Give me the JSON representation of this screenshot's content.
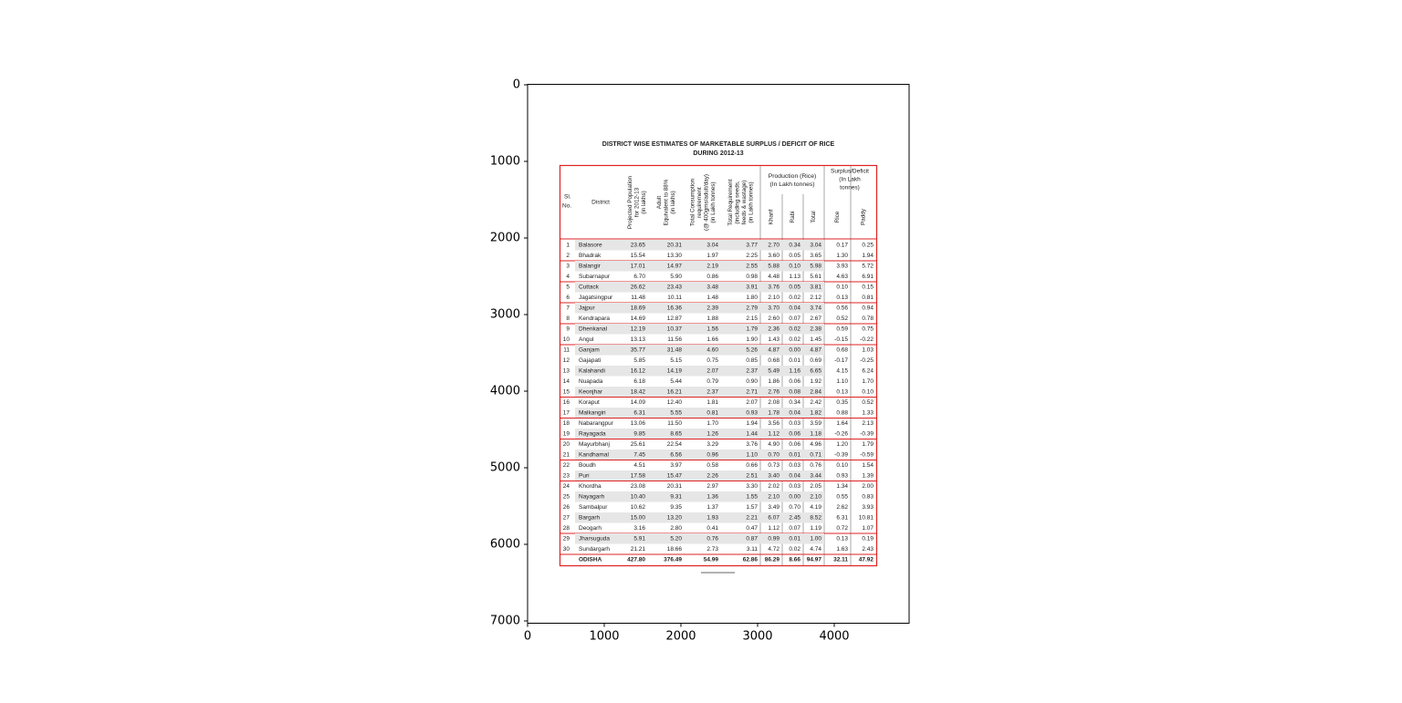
{
  "axes": {
    "xticks": [
      0,
      1000,
      2000,
      3000,
      4000
    ],
    "yticks": [
      0,
      1000,
      2000,
      3000,
      4000,
      5000,
      6000,
      7000
    ]
  },
  "document": {
    "title": [
      "DISTRICT WISE ESTIMATES OF MARKETABLE SURPLUS / DEFICIT OF RICE",
      "DURING 2012-13"
    ],
    "table": {
      "headers": [
        [
          "Sl.",
          "No."
        ],
        [
          "District"
        ],
        [
          "Projected Population",
          "for 2012-13",
          "(in lakhs)"
        ],
        [
          "Adult",
          "Equivalent to 88%",
          "(in lakhs)"
        ],
        [
          "Total Consumption",
          "requirement",
          "(@ 400gms/adult/day)",
          "(in Lakh tonnes)"
        ],
        [
          "Total Requirement",
          "(including seeds,",
          "feeds & wastage)",
          "(in Lakh tonnes)"
        ],
        [
          "Kharif"
        ],
        [
          "Rabi"
        ],
        [
          "Total"
        ],
        [
          "Rice"
        ],
        [
          "Paddy"
        ]
      ],
      "group_headers": [
        [
          "Production (Rice)",
          "(In Lakh tonnes)"
        ],
        [
          "Surplus/Deficit",
          "(In Lakh",
          "tonnes)"
        ]
      ],
      "rows": [
        [
          "1",
          "Balasore",
          "23.65",
          "20.31",
          "3.04",
          "3.77",
          "2.70",
          "0.34",
          "3.04",
          "0.17",
          "0.25"
        ],
        [
          "2",
          "Bhadrak",
          "15.54",
          "13.30",
          "1.97",
          "2.25",
          "3.60",
          "0.05",
          "3.65",
          "1.30",
          "1.94"
        ],
        [
          "3",
          "Balangir",
          "17.01",
          "14.97",
          "2.19",
          "2.55",
          "5.88",
          "0.10",
          "5.98",
          "3.93",
          "5.72"
        ],
        [
          "4",
          "Subarnapur",
          "6.70",
          "5.90",
          "0.86",
          "0.98",
          "4.48",
          "1.13",
          "5.61",
          "4.63",
          "6.91"
        ],
        [
          "5",
          "Cuttack",
          "26.62",
          "23.43",
          "3.48",
          "3.91",
          "3.76",
          "0.05",
          "3.81",
          "0.10",
          "0.15"
        ],
        [
          "6",
          "Jagatsingpur",
          "11.48",
          "10.11",
          "1.48",
          "1.80",
          "2.10",
          "0.02",
          "2.12",
          "0.13",
          "0.81"
        ],
        [
          "7",
          "Jajpur",
          "18.69",
          "16.36",
          "2.39",
          "2.79",
          "3.70",
          "0.04",
          "3.74",
          "0.56",
          "0.94"
        ],
        [
          "8",
          "Kendrapara",
          "14.69",
          "12.87",
          "1.88",
          "2.15",
          "2.60",
          "0.07",
          "2.67",
          "0.52",
          "0.78"
        ],
        [
          "9",
          "Dhenkanal",
          "12.19",
          "10.37",
          "1.56",
          "1.79",
          "2.36",
          "0.02",
          "2.38",
          "0.59",
          "0.75"
        ],
        [
          "10",
          "Angul",
          "13.13",
          "11.56",
          "1.66",
          "1.90",
          "1.43",
          "0.02",
          "1.45",
          "-0.15",
          "-0.22"
        ],
        [
          "11",
          "Ganjam",
          "35.77",
          "31.48",
          "4.60",
          "5.26",
          "4.87",
          "0.00",
          "4.87",
          "0.68",
          "1.03"
        ],
        [
          "12",
          "Gajapati",
          "5.85",
          "5.15",
          "0.75",
          "0.85",
          "0.68",
          "0.01",
          "0.69",
          "-0.17",
          "-0.25"
        ],
        [
          "13",
          "Kalahandi",
          "16.12",
          "14.19",
          "2.07",
          "2.37",
          "5.49",
          "1.16",
          "6.65",
          "4.15",
          "6.24"
        ],
        [
          "14",
          "Nuapada",
          "6.18",
          "5.44",
          "0.79",
          "0.90",
          "1.86",
          "0.06",
          "1.92",
          "1.10",
          "1.70"
        ],
        [
          "15",
          "Keonjhar",
          "18.42",
          "16.21",
          "2.37",
          "2.71",
          "2.76",
          "0.08",
          "2.84",
          "0.13",
          "0.10"
        ],
        [
          "16",
          "Koraput",
          "14.09",
          "12.40",
          "1.81",
          "2.07",
          "2.08",
          "0.34",
          "2.42",
          "0.35",
          "0.52"
        ],
        [
          "17",
          "Malkangiri",
          "6.31",
          "5.55",
          "0.81",
          "0.93",
          "1.78",
          "0.04",
          "1.82",
          "0.88",
          "1.33"
        ],
        [
          "18",
          "Nabarangpur",
          "13.06",
          "11.50",
          "1.70",
          "1.94",
          "3.56",
          "0.03",
          "3.59",
          "1.64",
          "2.13"
        ],
        [
          "19",
          "Rayagada",
          "9.85",
          "8.65",
          "1.26",
          "1.44",
          "1.12",
          "0.06",
          "1.18",
          "-0.26",
          "-0.39"
        ],
        [
          "20",
          "Mayurbhanj",
          "25.61",
          "22.54",
          "3.29",
          "3.76",
          "4.90",
          "0.06",
          "4.96",
          "1.20",
          "1.79"
        ],
        [
          "21",
          "Kandhamal",
          "7.45",
          "6.56",
          "0.96",
          "1.10",
          "0.70",
          "0.01",
          "0.71",
          "-0.39",
          "-0.59"
        ],
        [
          "22",
          "Boudh",
          "4.51",
          "3.97",
          "0.58",
          "0.66",
          "0.73",
          "0.03",
          "0.76",
          "0.10",
          "1.54"
        ],
        [
          "23",
          "Puri",
          "17.58",
          "15.47",
          "2.26",
          "2.51",
          "3.40",
          "0.04",
          "3.44",
          "0.93",
          "1.39"
        ],
        [
          "24",
          "Khordha",
          "23.08",
          "20.31",
          "2.97",
          "3.30",
          "2.02",
          "0.03",
          "2.05",
          "1.34",
          "2.00"
        ],
        [
          "25",
          "Nayagarh",
          "10.40",
          "9.31",
          "1.36",
          "1.55",
          "2.10",
          "0.00",
          "2.10",
          "0.55",
          "0.83"
        ],
        [
          "26",
          "Sambalpur",
          "10.62",
          "9.35",
          "1.37",
          "1.57",
          "3.49",
          "0.70",
          "4.19",
          "2.62",
          "3.93"
        ],
        [
          "27",
          "Bargarh",
          "15.00",
          "13.20",
          "1.93",
          "2.21",
          "6.07",
          "2.45",
          "8.52",
          "6.31",
          "10.81"
        ],
        [
          "28",
          "Deogarh",
          "3.16",
          "2.80",
          "0.41",
          "0.47",
          "1.12",
          "0.07",
          "1.19",
          "0.72",
          "1.07"
        ],
        [
          "29",
          "Jharsuguda",
          "5.91",
          "5.20",
          "0.76",
          "0.87",
          "0.99",
          "0.01",
          "1.00",
          "0.13",
          "0.19"
        ],
        [
          "30",
          "Sundargarh",
          "21.21",
          "18.66",
          "2.73",
          "3.11",
          "4.72",
          "0.02",
          "4.74",
          "1.63",
          "2.43"
        ]
      ],
      "total": [
        "ODISHA",
        "427.80",
        "376.49",
        "54.99",
        "62.86",
        "86.29",
        "8.66",
        "94.97",
        "32.11",
        "47.92"
      ]
    }
  }
}
